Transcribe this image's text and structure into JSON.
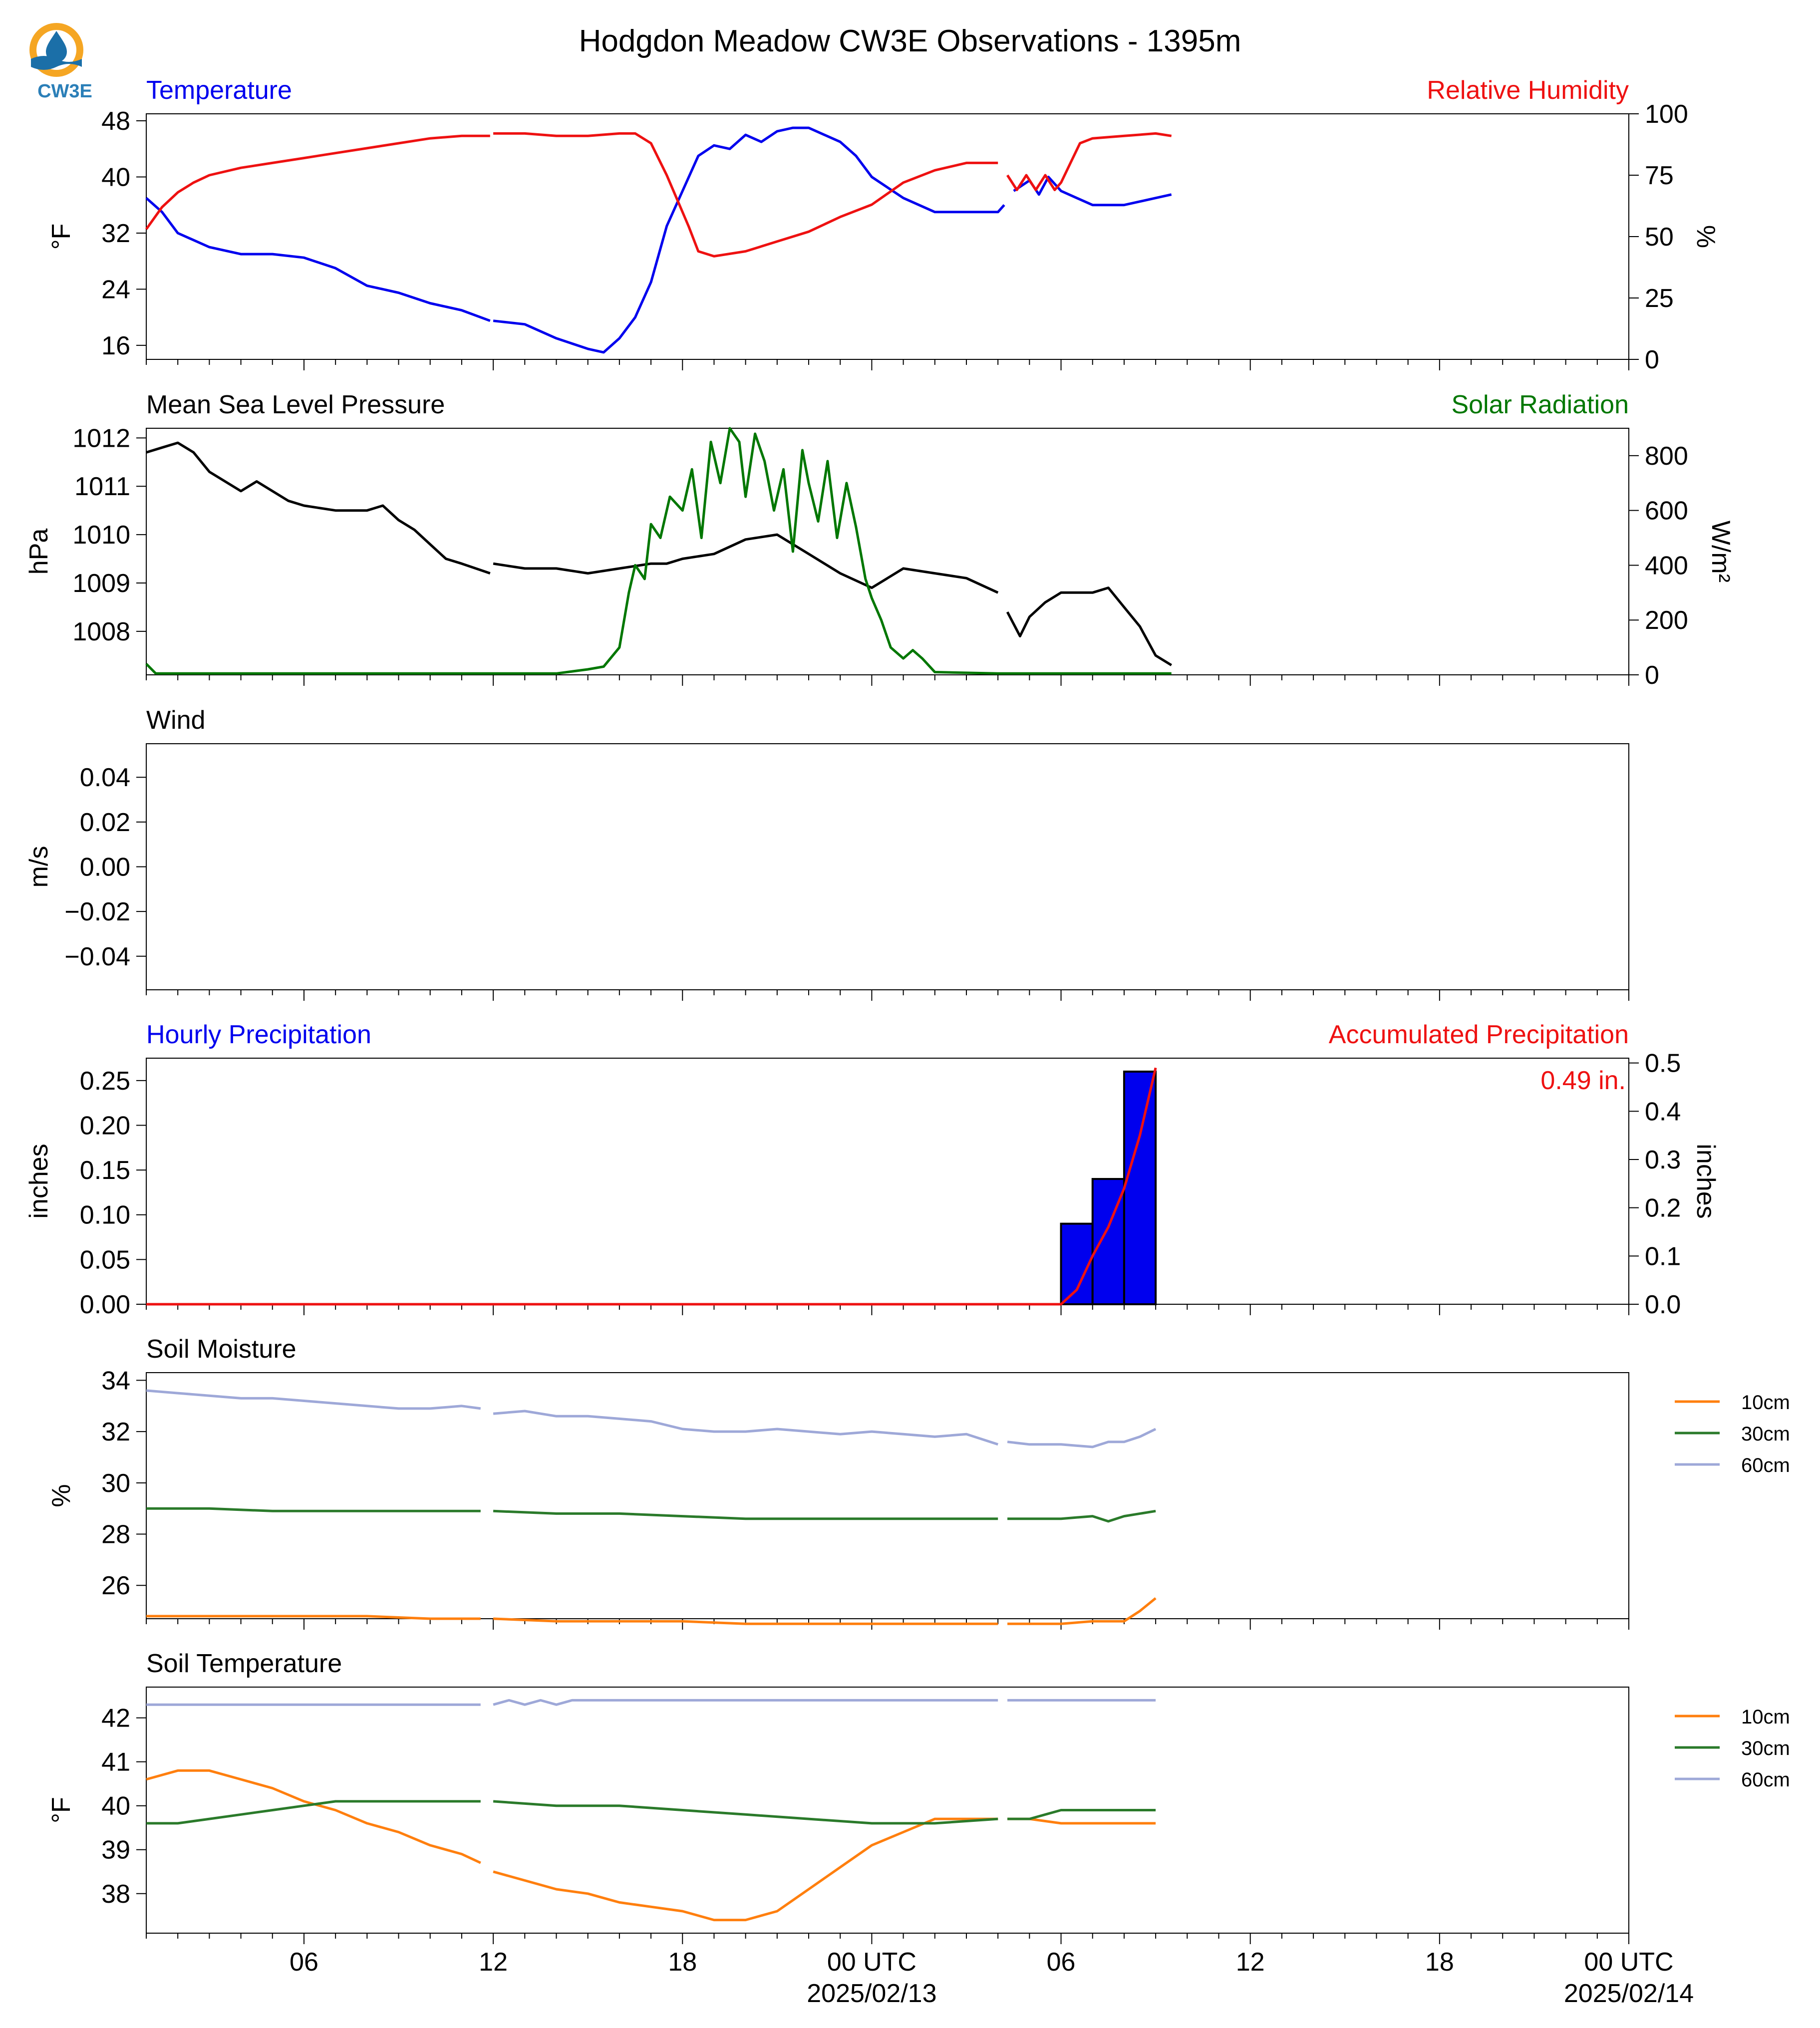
{
  "title": "Hodgdon Meadow CW3E Observations - 1395m",
  "logo": {
    "text": "CW3E",
    "icon": "water-drop-logo-icon",
    "colors": {
      "ring": "#f5a623",
      "wave": "#1b6fa8",
      "text": "#2b7fb8"
    }
  },
  "colors": {
    "blue": "#0000ee",
    "red": "#ee1111",
    "green": "#007700",
    "black": "#000000",
    "orange": "#ff7f0e",
    "dkgreen": "#2a7a2a",
    "lavender": "#9ea8d8"
  },
  "x_axis": {
    "ticks_major": [
      {
        "h": 6,
        "label": "06"
      },
      {
        "h": 12,
        "label": "12"
      },
      {
        "h": 18,
        "label": "18"
      },
      {
        "h": 24,
        "label": "00 UTC",
        "sub": "2025/02/13"
      },
      {
        "h": 30,
        "label": "06"
      },
      {
        "h": 36,
        "label": "12"
      },
      {
        "h": 42,
        "label": "18"
      },
      {
        "h": 48,
        "label": "00 UTC",
        "sub": "2025/02/14"
      }
    ],
    "range_hours": [
      1,
      48
    ]
  },
  "chart_data": [
    {
      "type": "line",
      "title_left": "Temperature",
      "title_right": "Relative Humidity",
      "ylabel": "°F",
      "y2label": "%",
      "ylim": [
        14,
        49
      ],
      "yticks": [
        16,
        24,
        32,
        40,
        48
      ],
      "y2lim": [
        0,
        100
      ],
      "y2ticks": [
        0,
        25,
        50,
        75,
        100
      ],
      "series": [
        {
          "axis": "left",
          "color": "blue",
          "x": [
            1,
            1.5,
            2,
            3,
            4,
            5,
            6,
            7,
            8,
            9,
            10,
            11,
            11.9,
            null,
            12,
            13,
            14,
            15,
            15.5,
            16,
            16.5,
            17,
            17.5,
            18,
            18.5,
            19,
            19.5,
            20,
            20.5,
            21,
            21.5,
            22,
            22.5,
            23,
            23.5,
            24,
            25,
            26,
            27,
            28,
            28.2,
            null,
            28.5,
            29,
            29.3,
            29.6,
            30,
            30.5,
            31,
            32,
            33,
            33.5
          ],
          "y": [
            37,
            35,
            32,
            30,
            29,
            29,
            28.5,
            27,
            24.5,
            23.5,
            22,
            21,
            19.5,
            null,
            19.5,
            19,
            17,
            15.5,
            15,
            17,
            20,
            25,
            33,
            38,
            43,
            44.5,
            44,
            46,
            45,
            46.5,
            47,
            47,
            46,
            45,
            43,
            40,
            37,
            35,
            35,
            35,
            36,
            null,
            38,
            39.5,
            37.5,
            40,
            38,
            37,
            36,
            36,
            37,
            37.5
          ]
        },
        {
          "axis": "right",
          "color": "red",
          "x": [
            1,
            1.5,
            2,
            2.5,
            3,
            4,
            5,
            6,
            7,
            8,
            9,
            10,
            11,
            11.9,
            null,
            12,
            13,
            14,
            15,
            16,
            16.5,
            17,
            17.5,
            18,
            18.2,
            18.5,
            19,
            20,
            21,
            22,
            23,
            24,
            25,
            26,
            27,
            28,
            null,
            28.3,
            28.6,
            28.9,
            29.2,
            29.5,
            29.8,
            30,
            30.3,
            30.6,
            31,
            32,
            33,
            33.5
          ],
          "y": [
            53,
            62,
            68,
            72,
            75,
            78,
            80,
            82,
            84,
            86,
            88,
            90,
            91,
            91,
            null,
            92,
            92,
            91,
            91,
            92,
            92,
            88,
            75,
            60,
            54,
            44,
            42,
            44,
            48,
            52,
            58,
            63,
            72,
            77,
            80,
            80,
            null,
            75,
            69,
            75,
            69,
            75,
            69,
            72,
            80,
            88,
            90,
            91,
            92,
            91
          ]
        }
      ]
    },
    {
      "type": "line",
      "title_left": "Mean Sea Level Pressure",
      "title_right": "Solar Radiation",
      "ylabel": "hPa",
      "y2label": "W/m²",
      "ylim": [
        1007.1,
        1012.2
      ],
      "yticks": [
        1008,
        1009,
        1010,
        1011,
        1012
      ],
      "y2lim": [
        0,
        900
      ],
      "y2ticks": [
        0,
        200,
        400,
        600,
        800
      ],
      "series": [
        {
          "axis": "left",
          "color": "black",
          "x": [
            1,
            1.5,
            2,
            2.5,
            3,
            4,
            4.5,
            5,
            5.5,
            6,
            7,
            8,
            8.5,
            9,
            9.5,
            10,
            10.5,
            11,
            11.9,
            null,
            12,
            13,
            14,
            15,
            16,
            17,
            17.5,
            18,
            19,
            20,
            21,
            22,
            23,
            24,
            25,
            26,
            27,
            28,
            null,
            28.3,
            28.7,
            29,
            29.5,
            30,
            31,
            31.5,
            32,
            32.5,
            33,
            33.5
          ],
          "y": [
            1011.7,
            1011.8,
            1011.9,
            1011.7,
            1011.3,
            1010.9,
            1011.1,
            1010.9,
            1010.7,
            1010.6,
            1010.5,
            1010.5,
            1010.6,
            1010.3,
            1010.1,
            1009.8,
            1009.5,
            1009.4,
            1009.2,
            null,
            1009.4,
            1009.3,
            1009.3,
            1009.2,
            1009.3,
            1009.4,
            1009.4,
            1009.5,
            1009.6,
            1009.9,
            1010,
            1009.6,
            1009.2,
            1008.9,
            1009.3,
            1009.2,
            1009.1,
            1008.8,
            null,
            1008.4,
            1007.9,
            1008.3,
            1008.6,
            1008.8,
            1008.8,
            1008.9,
            1008.5,
            1008.1,
            1007.5,
            1007.3
          ]
        },
        {
          "axis": "right",
          "color": "green",
          "x": [
            1,
            1.3,
            2,
            6,
            10,
            14,
            15,
            15.5,
            16,
            16.3,
            16.5,
            16.8,
            17,
            17.3,
            17.6,
            18,
            18.3,
            18.6,
            18.9,
            19.2,
            19.5,
            19.8,
            20,
            20.3,
            20.6,
            20.9,
            21.2,
            21.5,
            21.8,
            22,
            22.3,
            22.6,
            22.9,
            23.2,
            23.5,
            23.8,
            24,
            24.3,
            24.6,
            25,
            25.3,
            25.6,
            26,
            28,
            30,
            33.5
          ],
          "y": [
            40,
            5,
            5,
            5,
            5,
            5,
            20,
            30,
            100,
            300,
            400,
            350,
            550,
            500,
            650,
            600,
            750,
            500,
            850,
            700,
            900,
            850,
            650,
            880,
            780,
            600,
            750,
            450,
            820,
            700,
            560,
            780,
            500,
            700,
            540,
            350,
            280,
            200,
            100,
            60,
            90,
            60,
            10,
            5,
            5,
            5
          ]
        }
      ]
    },
    {
      "type": "line",
      "title_left": "Wind",
      "ylabel": "m/s",
      "ylim": [
        -0.055,
        0.055
      ],
      "yticks": [
        -0.04,
        -0.02,
        0.0,
        0.02,
        0.04
      ],
      "ytick_labels": [
        "−0.04",
        "−0.02",
        "0.00",
        "0.02",
        "0.04"
      ],
      "series": []
    },
    {
      "type": "bar",
      "title_left": "Hourly Precipitation",
      "title_right": "Accumulated Precipitation",
      "ylabel": "inches",
      "y2label": "inches",
      "annotation": "0.49 in.",
      "ylim": [
        0,
        0.275
      ],
      "yticks": [
        0.0,
        0.05,
        0.1,
        0.15,
        0.2,
        0.25
      ],
      "ytick_labels": [
        "0.00",
        "0.05",
        "0.10",
        "0.15",
        "0.20",
        "0.25"
      ],
      "y2lim": [
        0,
        0.51
      ],
      "y2ticks": [
        0.0,
        0.1,
        0.2,
        0.3,
        0.4,
        0.5
      ],
      "y2tick_labels": [
        "0.0",
        "0.1",
        "0.2",
        "0.3",
        "0.4",
        "0.5"
      ],
      "bars": [
        {
          "x0": 30,
          "x1": 31,
          "value": 0.09
        },
        {
          "x0": 31,
          "x1": 32,
          "value": 0.14
        },
        {
          "x0": 32,
          "x1": 33,
          "value": 0.26
        }
      ],
      "series": [
        {
          "axis": "right",
          "color": "red",
          "x": [
            1,
            10,
            20,
            30,
            30.5,
            31,
            31.5,
            32,
            32.5,
            33
          ],
          "y": [
            0,
            0,
            0,
            0,
            0.03,
            0.1,
            0.16,
            0.24,
            0.35,
            0.49
          ]
        }
      ]
    },
    {
      "type": "line",
      "title_left": "Soil Moisture",
      "ylabel": "%",
      "ylim": [
        24.7,
        34.3
      ],
      "yticks": [
        26,
        28,
        30,
        32,
        34
      ],
      "legend": [
        "10cm",
        "30cm",
        "60cm"
      ],
      "legend_position": "outside-right",
      "series": [
        {
          "name": "10cm",
          "color": "orange",
          "x": [
            1,
            2,
            4,
            6,
            8,
            10,
            11.6,
            null,
            12,
            14,
            16,
            18,
            20,
            22,
            24,
            26,
            28,
            null,
            28.3,
            30,
            31,
            32,
            32.5,
            33
          ],
          "y": [
            24.8,
            24.8,
            24.8,
            24.8,
            24.8,
            24.7,
            24.7,
            null,
            24.7,
            24.6,
            24.6,
            24.6,
            24.5,
            24.5,
            24.5,
            24.5,
            24.5,
            null,
            24.5,
            24.5,
            24.6,
            24.6,
            25,
            25.5
          ]
        },
        {
          "name": "30cm",
          "color": "dkgreen",
          "x": [
            1,
            3,
            5,
            7,
            9,
            11.6,
            null,
            12,
            14,
            16,
            18,
            20,
            22,
            24,
            26,
            28,
            null,
            28.3,
            30,
            31,
            31.5,
            32,
            33
          ],
          "y": [
            29,
            29,
            28.9,
            28.9,
            28.9,
            28.9,
            null,
            28.9,
            28.8,
            28.8,
            28.7,
            28.6,
            28.6,
            28.6,
            28.6,
            28.6,
            null,
            28.6,
            28.6,
            28.7,
            28.5,
            28.7,
            28.9
          ]
        },
        {
          "name": "60cm",
          "color": "lavender",
          "x": [
            1,
            2,
            3,
            4,
            5,
            6,
            7,
            8,
            9,
            10,
            11,
            11.6,
            null,
            12,
            13,
            14,
            15,
            16,
            17,
            18,
            19,
            20,
            21,
            22,
            23,
            24,
            25,
            26,
            27,
            28,
            null,
            28.3,
            29,
            30,
            31,
            31.5,
            32,
            32.5,
            33
          ],
          "y": [
            33.6,
            33.5,
            33.4,
            33.3,
            33.3,
            33.2,
            33.1,
            33,
            32.9,
            32.9,
            33,
            32.9,
            null,
            32.7,
            32.8,
            32.6,
            32.6,
            32.5,
            32.4,
            32.1,
            32,
            32,
            32.1,
            32,
            31.9,
            32,
            31.9,
            31.8,
            31.9,
            31.5,
            null,
            31.6,
            31.5,
            31.5,
            31.4,
            31.6,
            31.6,
            31.8,
            32.1
          ]
        }
      ]
    },
    {
      "type": "line",
      "title_left": "Soil Temperature",
      "ylabel": "°F",
      "ylim": [
        37.1,
        42.7
      ],
      "yticks": [
        38,
        39,
        40,
        41,
        42
      ],
      "legend": [
        "10cm",
        "30cm",
        "60cm"
      ],
      "legend_position": "outside-right",
      "series": [
        {
          "name": "10cm",
          "color": "orange",
          "x": [
            1,
            2,
            3,
            4,
            5,
            6,
            7,
            8,
            9,
            10,
            11,
            11.6,
            null,
            12,
            13,
            14,
            15,
            16,
            17,
            18,
            19,
            20,
            21,
            22,
            23,
            24,
            25,
            26,
            27,
            28,
            null,
            28.3,
            29,
            30,
            31,
            32,
            33
          ],
          "y": [
            40.6,
            40.8,
            40.8,
            40.6,
            40.4,
            40.1,
            39.9,
            39.6,
            39.4,
            39.1,
            38.9,
            38.7,
            null,
            38.5,
            38.3,
            38.1,
            38,
            37.8,
            37.7,
            37.6,
            37.4,
            37.4,
            37.6,
            38.1,
            38.6,
            39.1,
            39.4,
            39.7,
            39.7,
            39.7,
            null,
            39.7,
            39.7,
            39.6,
            39.6,
            39.6,
            39.6
          ]
        },
        {
          "name": "30cm",
          "color": "dkgreen",
          "x": [
            1,
            2,
            3,
            4,
            5,
            6,
            7,
            8,
            9,
            10,
            11.6,
            null,
            12,
            14,
            16,
            18,
            20,
            22,
            24,
            26,
            28,
            null,
            28.3,
            29,
            29.5,
            30,
            32,
            33
          ],
          "y": [
            39.6,
            39.6,
            39.7,
            39.8,
            39.9,
            40,
            40.1,
            40.1,
            40.1,
            40.1,
            40.1,
            null,
            40.1,
            40,
            40,
            39.9,
            39.8,
            39.7,
            39.6,
            39.6,
            39.7,
            null,
            39.7,
            39.7,
            39.8,
            39.9,
            39.9,
            39.9
          ]
        },
        {
          "name": "60cm",
          "color": "lavender",
          "x": [
            1,
            4,
            8,
            11.6,
            null,
            12,
            12.5,
            13,
            13.5,
            14,
            14.5,
            15,
            16,
            20,
            24,
            28,
            null,
            28.3,
            30,
            33
          ],
          "y": [
            42.3,
            42.3,
            42.3,
            42.3,
            null,
            42.3,
            42.4,
            42.3,
            42.4,
            42.3,
            42.4,
            42.4,
            42.4,
            42.4,
            42.4,
            42.4,
            null,
            42.4,
            42.4,
            42.4
          ]
        }
      ]
    }
  ]
}
